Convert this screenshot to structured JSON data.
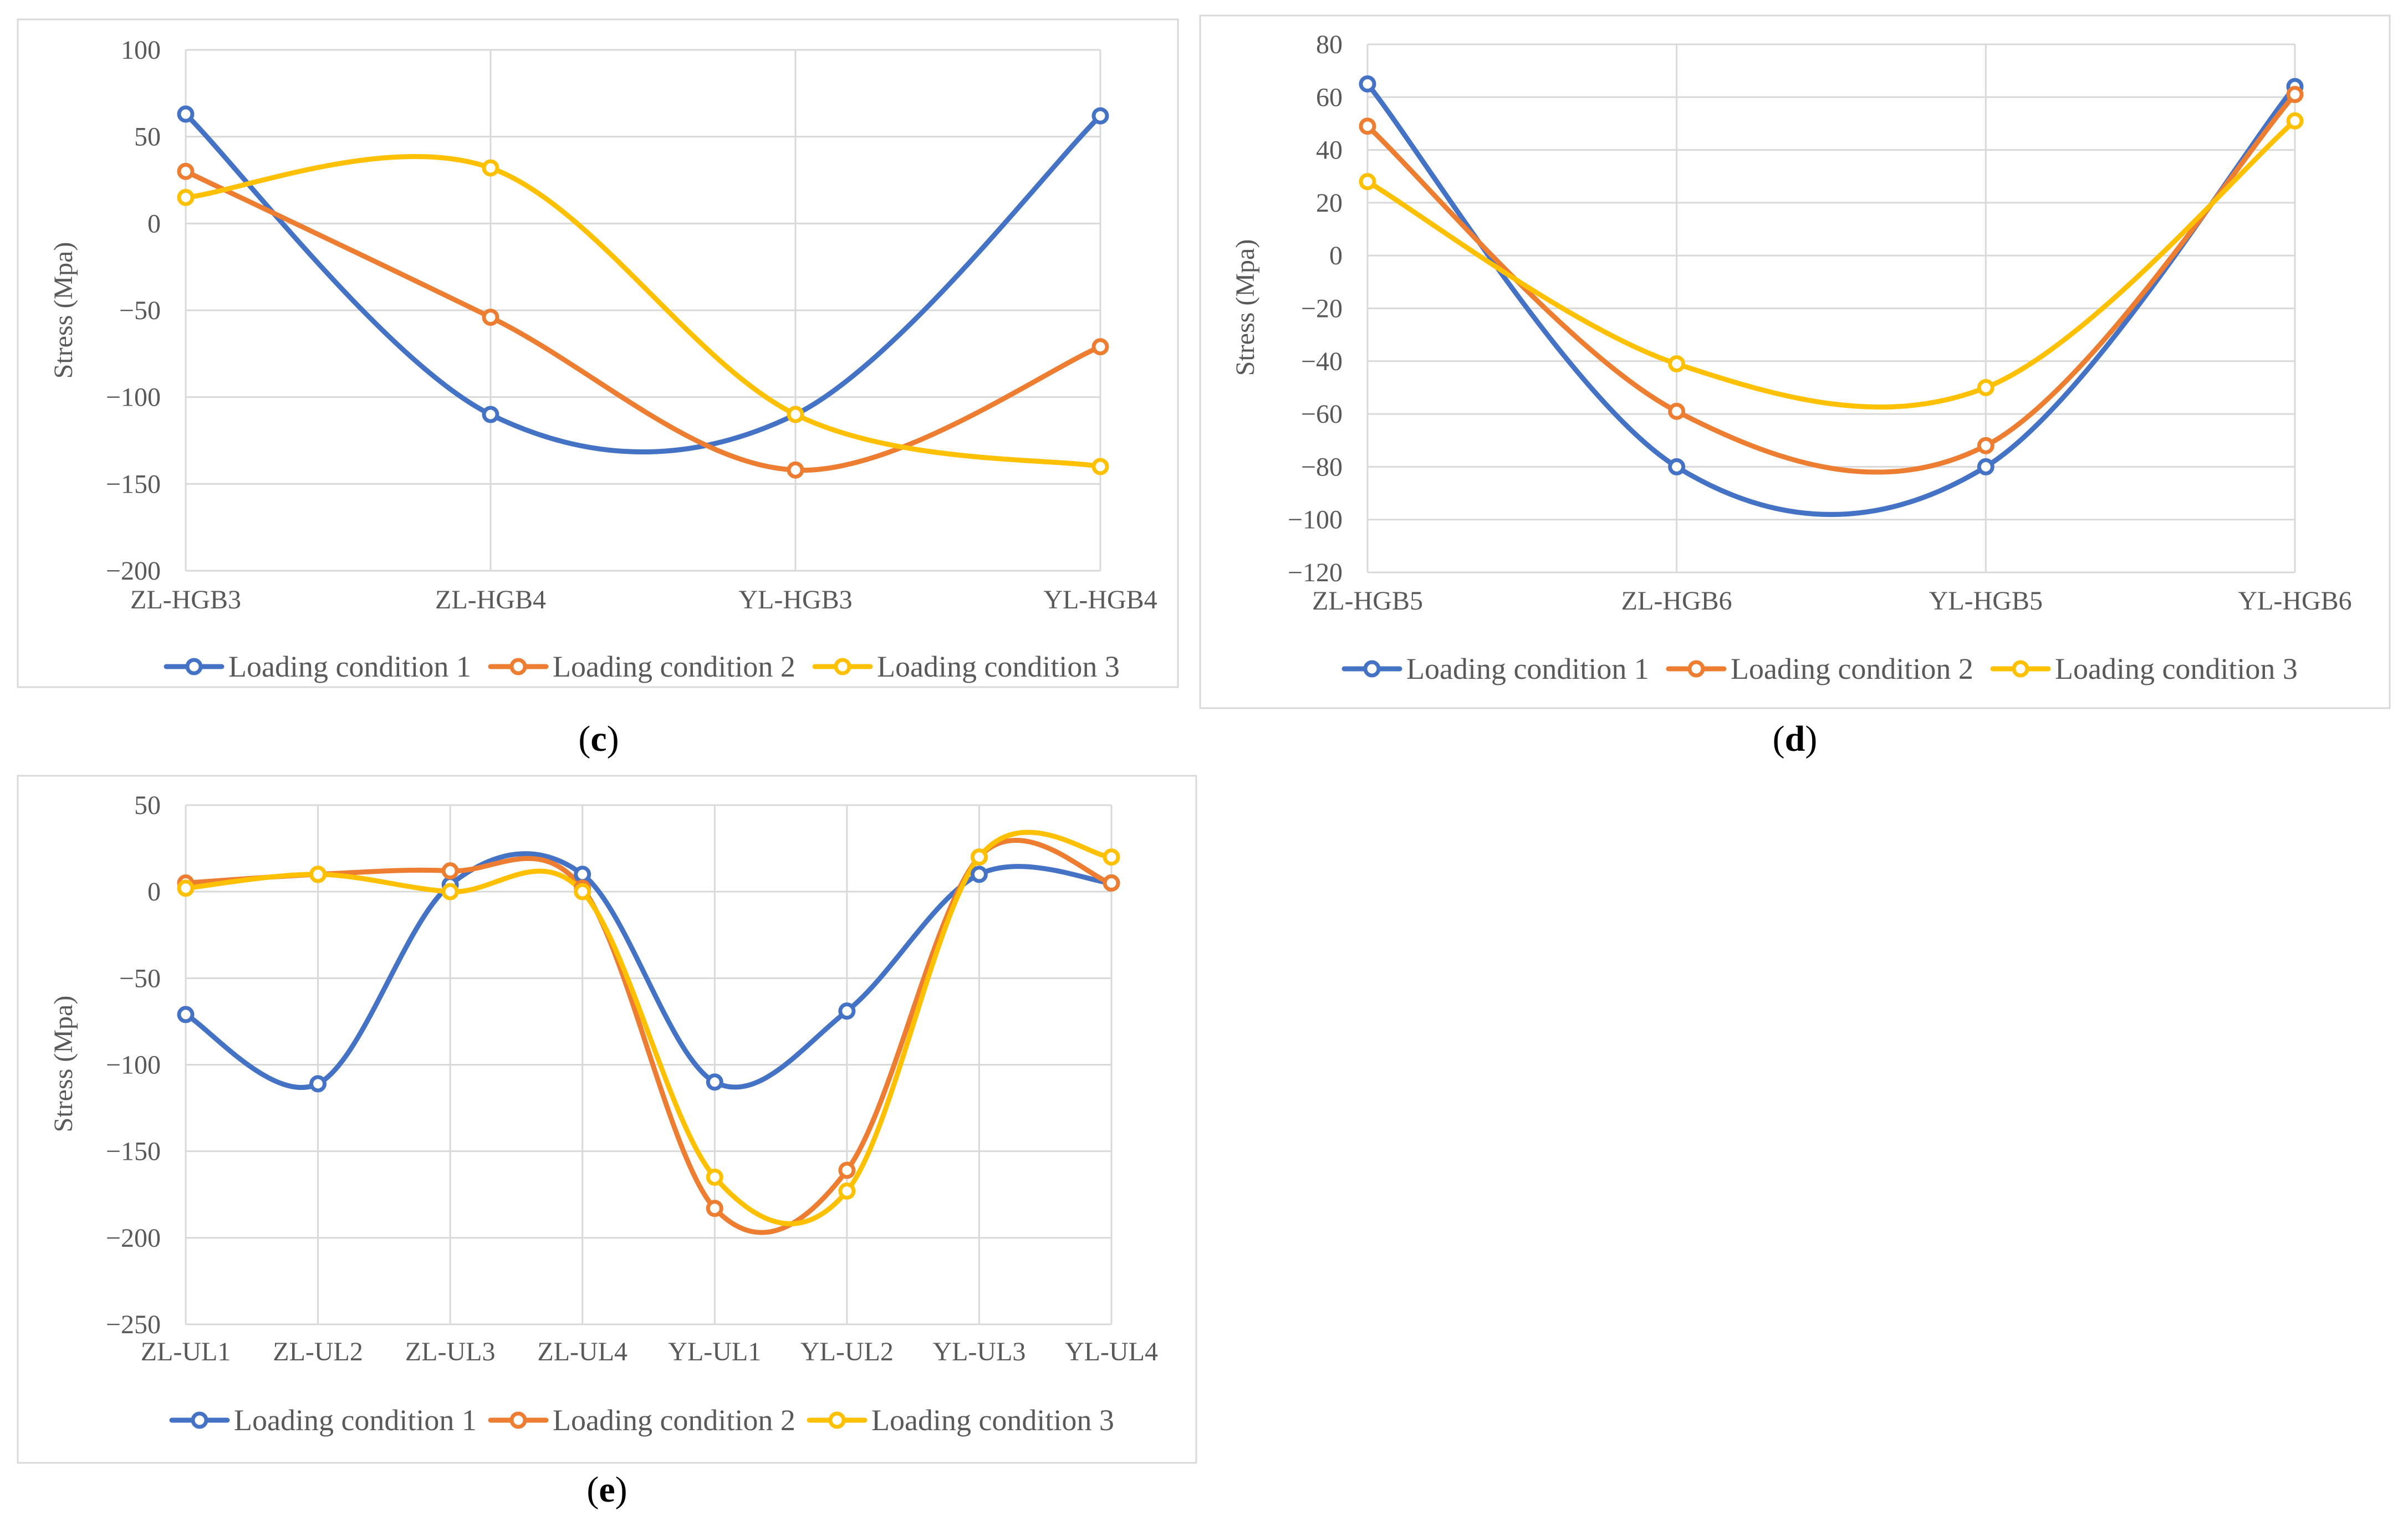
{
  "colors": {
    "series1": "#4472c4",
    "series2": "#ed7d31",
    "series3": "#ffc000"
  },
  "chart_data": [
    {
      "id": "c",
      "caption": "c",
      "type": "line",
      "smooth": true,
      "ylabel": "Stress (Mpa)",
      "ylim": [
        -200,
        100
      ],
      "ystep": 50,
      "categories": [
        "ZL-HGB3",
        "ZL-HGB4",
        "YL-HGB3",
        "YL-HGB4"
      ],
      "series": [
        {
          "name": "Loading condition 1",
          "values": [
            63,
            -110,
            -110,
            62
          ]
        },
        {
          "name": "Loading condition 2",
          "values": [
            30,
            -54,
            -142,
            -71
          ]
        },
        {
          "name": "Loading condition 3",
          "values": [
            15,
            32,
            -110,
            -140
          ]
        }
      ],
      "legend": "bottom",
      "grid": true
    },
    {
      "id": "d",
      "caption": "d",
      "type": "line",
      "smooth": true,
      "ylabel": "Stress (Mpa)",
      "ylim": [
        -120,
        80
      ],
      "ystep": 20,
      "categories": [
        "ZL-HGB5",
        "ZL-HGB6",
        "YL-HGB5",
        "YL-HGB6"
      ],
      "series": [
        {
          "name": "Loading condition 1",
          "values": [
            65,
            -80,
            -80,
            64
          ]
        },
        {
          "name": "Loading condition 2",
          "values": [
            49,
            -59,
            -72,
            61
          ]
        },
        {
          "name": "Loading condition 3",
          "values": [
            28,
            -41,
            -50,
            51
          ]
        }
      ],
      "legend": "bottom",
      "grid": true
    },
    {
      "id": "e",
      "caption": "e",
      "type": "line",
      "smooth": true,
      "ylabel": "Stress (Mpa)",
      "ylim": [
        -250,
        50
      ],
      "ystep": 50,
      "categories": [
        "ZL-UL1",
        "ZL-UL2",
        "ZL-UL3",
        "ZL-UL4",
        "YL-UL1",
        "YL-UL2",
        "YL-UL3",
        "YL-UL4"
      ],
      "series": [
        {
          "name": "Loading condition 1",
          "values": [
            -71,
            -111,
            4,
            10,
            -110,
            -69,
            10,
            5
          ]
        },
        {
          "name": "Loading condition 2",
          "values": [
            5,
            10,
            12,
            2,
            -183,
            -161,
            20,
            5
          ]
        },
        {
          "name": "Loading condition 3",
          "values": [
            2,
            10,
            0,
            0,
            -165,
            -173,
            20,
            20
          ]
        }
      ],
      "legend": "bottom",
      "grid": true
    }
  ]
}
